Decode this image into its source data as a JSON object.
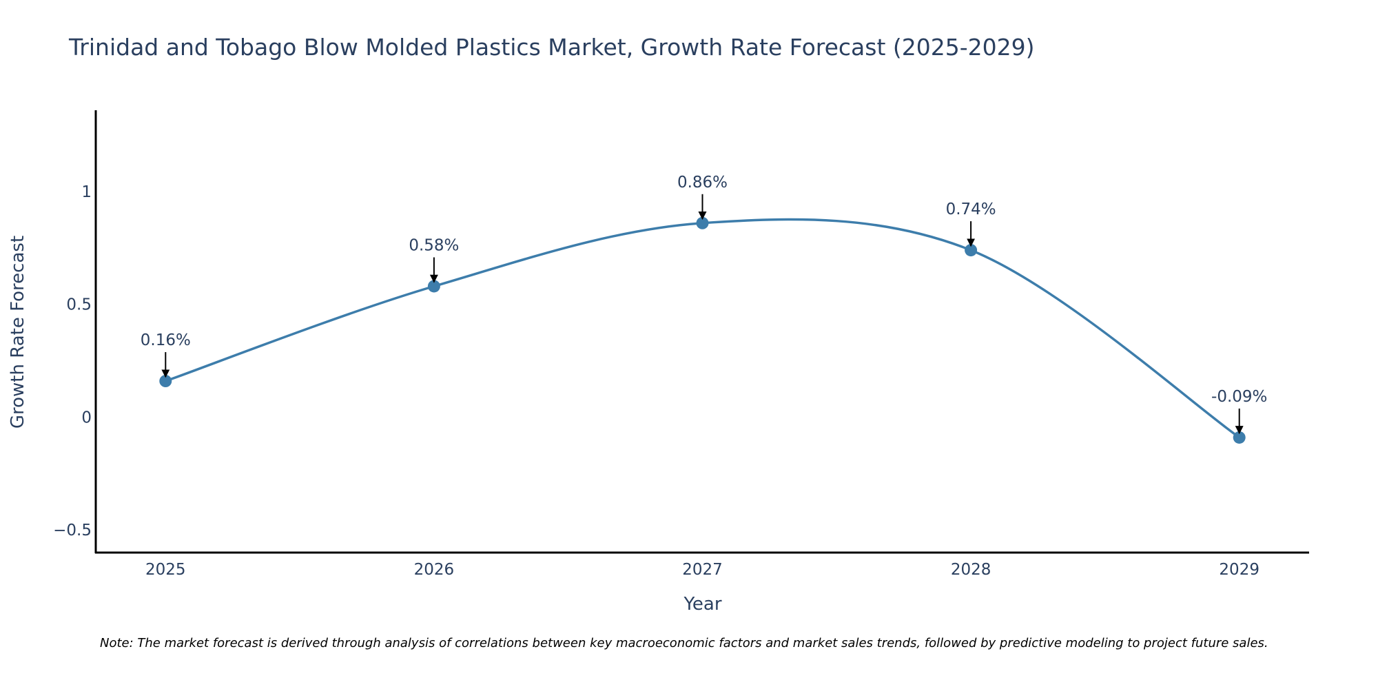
{
  "chart_data": {
    "type": "line",
    "title": "Trinidad and Tobago Blow Molded Plastics Market, Growth Rate Forecast (2025-2029)",
    "xlabel": "Year",
    "ylabel": "Growth Rate Forecast",
    "categories": [
      "2025",
      "2026",
      "2027",
      "2028",
      "2029"
    ],
    "x": [
      2025,
      2026,
      2027,
      2028,
      2029
    ],
    "values": [
      0.16,
      0.58,
      0.86,
      0.74,
      -0.09
    ],
    "data_labels": [
      "0.16%",
      "0.58%",
      "0.86%",
      "0.74%",
      "-0.09%"
    ],
    "y_ticks": [
      -0.5,
      0,
      0.5,
      1
    ],
    "y_tick_labels": [
      "−0.5",
      "0",
      "0.5",
      "1"
    ],
    "ylim": [
      -0.6,
      1.36
    ],
    "xlim": [
      2024.74,
      2029.26
    ],
    "line_shape": "spline",
    "grid": false,
    "legend": "none",
    "colors": {
      "line": "#3d7dab",
      "marker": "#3d7dab",
      "arrow": "#000000",
      "axis": "#000000",
      "text": "#2a3f5f"
    }
  },
  "note": "Note: The market forecast is derived through analysis of correlations between key macroeconomic factors and market sales trends, followed by predictive modeling to project future sales."
}
